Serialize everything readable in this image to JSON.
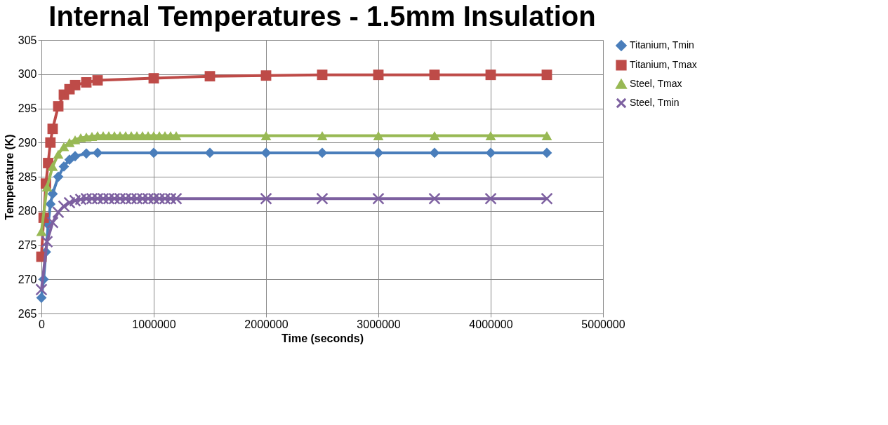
{
  "chart_data": {
    "type": "line",
    "title": "Internal Temperatures - 1.5mm Insulation",
    "xlabel": "Time (seconds)",
    "ylabel": "Temperature (K)",
    "xlim": [
      0,
      5000000
    ],
    "xticks": [
      0,
      1000000,
      2000000,
      3000000,
      4000000,
      5000000
    ],
    "ylim": [
      265,
      305
    ],
    "yticks": [
      265,
      270,
      275,
      280,
      285,
      290,
      295,
      300,
      305
    ],
    "grid": true,
    "legend": "right",
    "line_style": "solid",
    "series": [
      {
        "name": "Titanium, Tmin",
        "color": "#4a7ebb",
        "marker": "diamond",
        "x": [
          0,
          20000,
          40000,
          60000,
          80000,
          100000,
          150000,
          200000,
          250000,
          300000,
          400000,
          500000,
          1000000,
          1500000,
          2000000,
          2500000,
          3000000,
          3500000,
          4000000,
          4500000
        ],
        "values": [
          267.3,
          270,
          274,
          278,
          281,
          282.5,
          285,
          286.5,
          287.5,
          288,
          288.4,
          288.5,
          288.5,
          288.5,
          288.5,
          288.5,
          288.5,
          288.5,
          288.5,
          288.5
        ]
      },
      {
        "name": "Titanium, Tmax",
        "color": "#be4b48",
        "marker": "square",
        "x": [
          0,
          20000,
          40000,
          60000,
          80000,
          100000,
          150000,
          200000,
          250000,
          300000,
          400000,
          500000,
          1000000,
          1500000,
          2000000,
          2500000,
          3000000,
          3500000,
          4000000,
          4500000
        ],
        "values": [
          273.3,
          279,
          284,
          287,
          290,
          292,
          295.3,
          297,
          297.8,
          298.4,
          298.8,
          299.1,
          299.4,
          299.7,
          299.8,
          299.9,
          299.9,
          299.9,
          299.9,
          299.9
        ]
      },
      {
        "name": "Steel, Tmax",
        "color": "#98b954",
        "marker": "triangle",
        "x": [
          0,
          50000,
          100000,
          150000,
          200000,
          250000,
          300000,
          350000,
          400000,
          450000,
          500000,
          550000,
          600000,
          650000,
          700000,
          750000,
          800000,
          850000,
          900000,
          950000,
          1000000,
          1050000,
          1100000,
          1150000,
          1200000,
          2000000,
          2500000,
          3000000,
          3500000,
          4000000,
          4500000
        ],
        "values": [
          277,
          283.5,
          286.5,
          288.3,
          289.4,
          290,
          290.4,
          290.7,
          290.8,
          290.9,
          291,
          291,
          291,
          291,
          291,
          291,
          291,
          291,
          291,
          291,
          291,
          291,
          291,
          291,
          291,
          291,
          291,
          291,
          291,
          291,
          291
        ]
      },
      {
        "name": "Steel, Tmin",
        "color": "#7d60a0",
        "marker": "cross",
        "x": [
          0,
          50000,
          100000,
          150000,
          200000,
          250000,
          300000,
          350000,
          400000,
          450000,
          500000,
          550000,
          600000,
          650000,
          700000,
          750000,
          800000,
          850000,
          900000,
          950000,
          1000000,
          1050000,
          1100000,
          1150000,
          1200000,
          2000000,
          2500000,
          3000000,
          3500000,
          4000000,
          4500000
        ],
        "values": [
          268.5,
          275.5,
          278.3,
          279.8,
          280.7,
          281.2,
          281.5,
          281.7,
          281.8,
          281.8,
          281.8,
          281.8,
          281.8,
          281.8,
          281.8,
          281.8,
          281.8,
          281.8,
          281.8,
          281.8,
          281.8,
          281.8,
          281.8,
          281.8,
          281.8,
          281.8,
          281.8,
          281.8,
          281.8,
          281.8,
          281.8
        ]
      }
    ]
  }
}
